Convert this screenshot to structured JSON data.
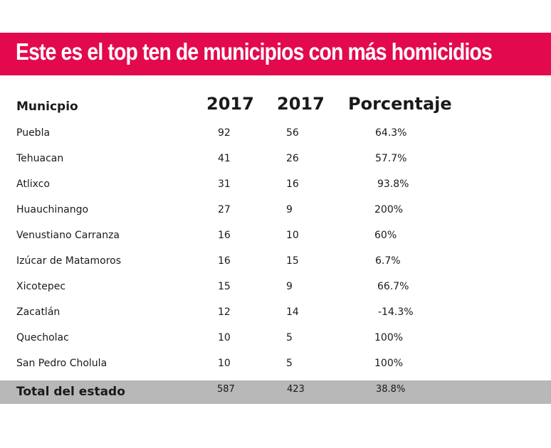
{
  "title": "Este es el top ten de municipios con más homicidios",
  "colors": {
    "title_bar": "#e3094d",
    "total_bar": "#b8b8b8"
  },
  "chart_data": {
    "type": "table",
    "title": "Este es el top ten de municipios con más homicidios",
    "columns": [
      "Municpio",
      "2017",
      "2017",
      "Porcentaje"
    ],
    "rows": [
      [
        "Puebla",
        "92",
        "56",
        "64.3%"
      ],
      [
        "Tehuacan",
        "41",
        "26",
        "57.7%"
      ],
      [
        "Atlixco",
        "31",
        "16",
        "93.8%"
      ],
      [
        "Huauchinango",
        "27",
        "9",
        "200%"
      ],
      [
        "Venustiano Carranza",
        "16",
        "10",
        "60%"
      ],
      [
        "Izúcar de Matamoros",
        "16",
        "15",
        "6.7%"
      ],
      [
        "Xicotepec",
        "15",
        "9",
        "66.7%"
      ],
      [
        "Zacatlán",
        "12",
        "14",
        "-14.3%"
      ],
      [
        "Quecholac",
        "10",
        "5",
        "100%"
      ],
      [
        "San Pedro Cholula",
        "10",
        "5",
        "100%"
      ]
    ],
    "total": [
      "Total del estado",
      "587",
      "423",
      "38.8%"
    ]
  }
}
